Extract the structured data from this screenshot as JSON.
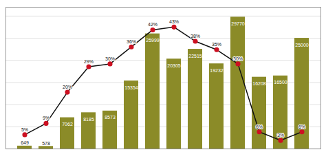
{
  "chart_data": {
    "type": "bar",
    "categories": [
      null,
      null,
      null,
      null,
      null,
      null,
      null,
      null,
      null,
      null,
      null,
      null,
      null,
      null
    ],
    "series": [
      {
        "type": "bar",
        "color": "#8B8B28",
        "values": [
          649,
          578,
          7062,
          8185,
          8573,
          15354,
          25999,
          20305,
          22515,
          19232,
          29770,
          16208,
          16500,
          25000
        ]
      },
      {
        "type": "line",
        "axis": "y2",
        "color": "#111111",
        "marker": "o",
        "colors": [
          "#cc1122",
          "#cc1122",
          "#cc1122",
          "#cc1122",
          "#cc1122",
          "#cc1122",
          "#cc1122",
          "#cc1122",
          "#cc1122",
          "#cc1122",
          "#cc1122",
          "#cc1122",
          "#cc1122",
          "#cc1122"
        ],
        "values": [
          5,
          9,
          20,
          29,
          30,
          36,
          42,
          43,
          38,
          35,
          30,
          6,
          3,
          6
        ],
        "value_labels": [
          "5%",
          "9%",
          "20%",
          "29%",
          "30%",
          "36%",
          "42%",
          "43%",
          "38%",
          "35%",
          "30%",
          "6%",
          "3%",
          "6%"
        ]
      }
    ],
    "ylim": [
      0,
      32000
    ],
    "yticks": [
      0,
      5000,
      10000,
      15000,
      20000,
      25000,
      30000
    ],
    "y2lim": [
      0,
      50
    ],
    "grid": true,
    "data_labels": true,
    "tick_labels": false
  }
}
